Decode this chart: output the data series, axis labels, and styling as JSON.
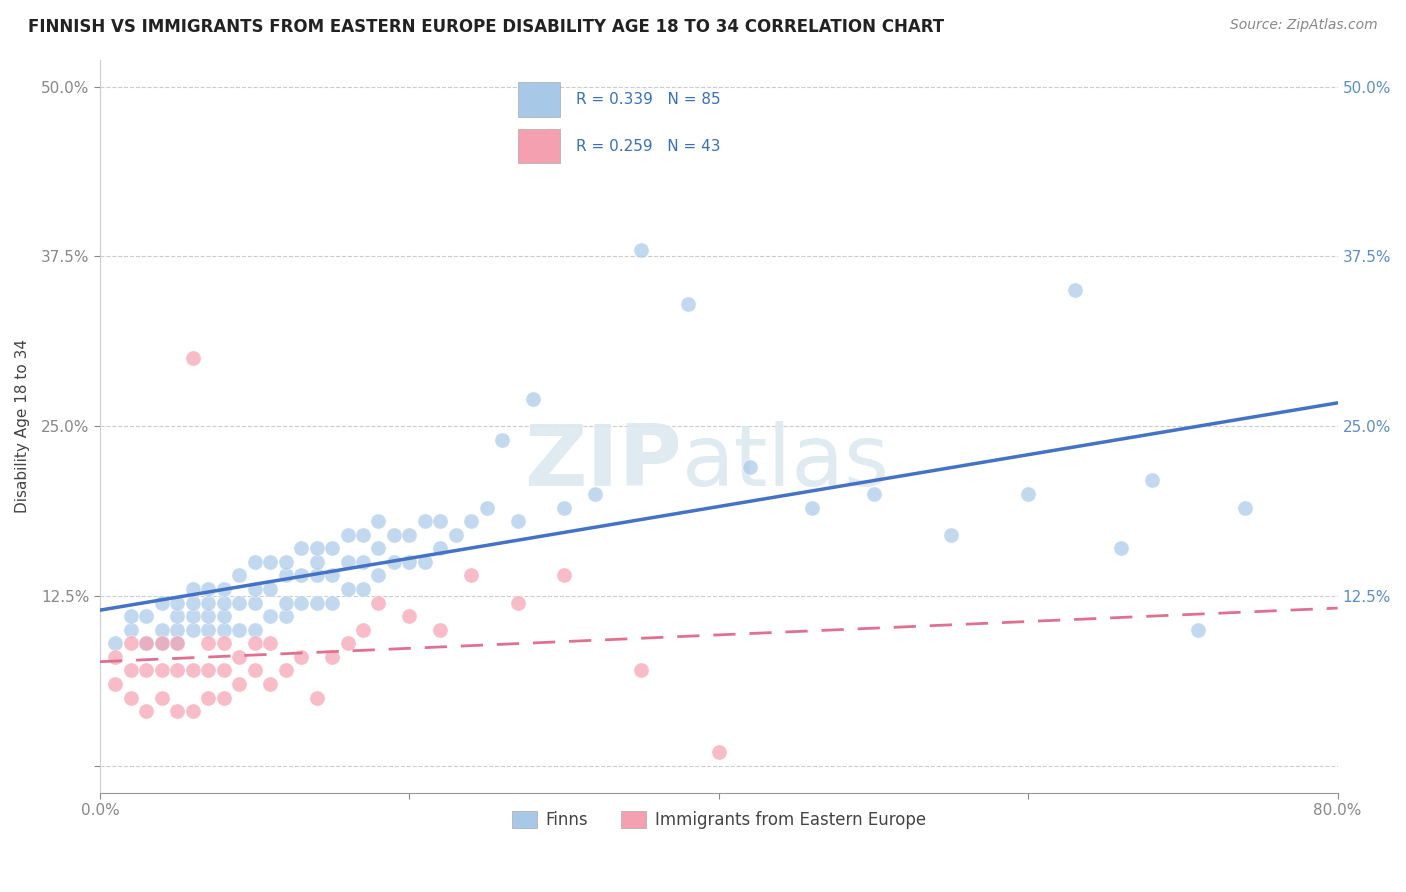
{
  "title": "FINNISH VS IMMIGRANTS FROM EASTERN EUROPE DISABILITY AGE 18 TO 34 CORRELATION CHART",
  "source": "Source: ZipAtlas.com",
  "ylabel": "Disability Age 18 to 34",
  "xlim": [
    0.0,
    0.8
  ],
  "ylim": [
    -0.02,
    0.52
  ],
  "xticks": [
    0.0,
    0.2,
    0.4,
    0.6,
    0.8
  ],
  "xticklabels": [
    "0.0%",
    "",
    "",
    "",
    "80.0%"
  ],
  "yticks": [
    0.0,
    0.125,
    0.25,
    0.375,
    0.5
  ],
  "yticklabels": [
    "",
    "12.5%",
    "25.0%",
    "37.5%",
    "50.0%"
  ],
  "finns_R": 0.339,
  "finns_N": 85,
  "immig_R": 0.259,
  "immig_N": 43,
  "finns_color": "#a8c8e8",
  "immig_color": "#f4a0b0",
  "finns_line_color": "#4472c4",
  "immig_line_color": "#e07090",
  "watermark_color": "#dce8f0",
  "finns_x": [
    0.01,
    0.02,
    0.02,
    0.03,
    0.03,
    0.04,
    0.04,
    0.04,
    0.05,
    0.05,
    0.05,
    0.05,
    0.06,
    0.06,
    0.06,
    0.06,
    0.07,
    0.07,
    0.07,
    0.07,
    0.08,
    0.08,
    0.08,
    0.08,
    0.09,
    0.09,
    0.09,
    0.1,
    0.1,
    0.1,
    0.1,
    0.11,
    0.11,
    0.11,
    0.12,
    0.12,
    0.12,
    0.12,
    0.13,
    0.13,
    0.13,
    0.14,
    0.14,
    0.14,
    0.14,
    0.15,
    0.15,
    0.15,
    0.16,
    0.16,
    0.16,
    0.17,
    0.17,
    0.17,
    0.18,
    0.18,
    0.18,
    0.19,
    0.19,
    0.2,
    0.2,
    0.21,
    0.21,
    0.22,
    0.22,
    0.23,
    0.24,
    0.25,
    0.26,
    0.27,
    0.28,
    0.3,
    0.32,
    0.35,
    0.38,
    0.42,
    0.46,
    0.5,
    0.55,
    0.6,
    0.63,
    0.66,
    0.68,
    0.71,
    0.74
  ],
  "finns_y": [
    0.09,
    0.1,
    0.11,
    0.09,
    0.11,
    0.09,
    0.1,
    0.12,
    0.09,
    0.1,
    0.11,
    0.12,
    0.1,
    0.11,
    0.12,
    0.13,
    0.1,
    0.11,
    0.12,
    0.13,
    0.1,
    0.11,
    0.12,
    0.13,
    0.1,
    0.12,
    0.14,
    0.1,
    0.12,
    0.13,
    0.15,
    0.11,
    0.13,
    0.15,
    0.11,
    0.12,
    0.14,
    0.15,
    0.12,
    0.14,
    0.16,
    0.12,
    0.14,
    0.15,
    0.16,
    0.12,
    0.14,
    0.16,
    0.13,
    0.15,
    0.17,
    0.13,
    0.15,
    0.17,
    0.14,
    0.16,
    0.18,
    0.15,
    0.17,
    0.15,
    0.17,
    0.15,
    0.18,
    0.16,
    0.18,
    0.17,
    0.18,
    0.19,
    0.24,
    0.18,
    0.27,
    0.19,
    0.2,
    0.38,
    0.34,
    0.22,
    0.19,
    0.2,
    0.17,
    0.2,
    0.35,
    0.16,
    0.21,
    0.1,
    0.19
  ],
  "immig_x": [
    0.01,
    0.01,
    0.02,
    0.02,
    0.02,
    0.03,
    0.03,
    0.03,
    0.04,
    0.04,
    0.04,
    0.05,
    0.05,
    0.05,
    0.06,
    0.06,
    0.06,
    0.07,
    0.07,
    0.07,
    0.08,
    0.08,
    0.08,
    0.09,
    0.09,
    0.1,
    0.1,
    0.11,
    0.11,
    0.12,
    0.13,
    0.14,
    0.15,
    0.16,
    0.17,
    0.18,
    0.2,
    0.22,
    0.24,
    0.27,
    0.3,
    0.35,
    0.4
  ],
  "immig_y": [
    0.06,
    0.08,
    0.05,
    0.07,
    0.09,
    0.04,
    0.07,
    0.09,
    0.05,
    0.07,
    0.09,
    0.04,
    0.07,
    0.09,
    0.04,
    0.07,
    0.3,
    0.05,
    0.07,
    0.09,
    0.05,
    0.07,
    0.09,
    0.06,
    0.08,
    0.07,
    0.09,
    0.06,
    0.09,
    0.07,
    0.08,
    0.05,
    0.08,
    0.09,
    0.1,
    0.12,
    0.11,
    0.1,
    0.14,
    0.12,
    0.14,
    0.07,
    0.01
  ]
}
